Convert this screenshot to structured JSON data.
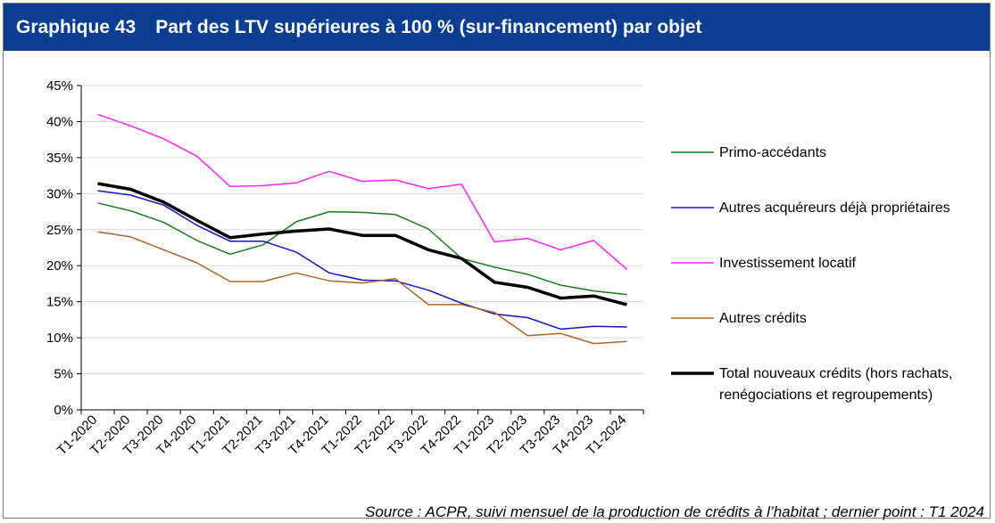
{
  "header": {
    "number": "Graphique 43",
    "title": "Part des LTV supérieures à 100 % (sur-financement) par objet"
  },
  "source": "Source : ACPR, suivi mensuel de la production de crédits à l’habitat ; dernier point : T1 2024",
  "chart_data": {
    "type": "line",
    "title": "",
    "xlabel": "",
    "ylabel": "",
    "ylim": [
      0,
      45
    ],
    "y_ticks": [
      "0%",
      "5%",
      "10%",
      "15%",
      "20%",
      "25%",
      "30%",
      "35%",
      "40%",
      "45%"
    ],
    "grid": "horizontal",
    "legend_position": "right",
    "categories": [
      "T1-2020",
      "T2-2020",
      "T3-2020",
      "T4-2020",
      "T1-2021",
      "T2-2021",
      "T3-2021",
      "T4-2021",
      "T1-2022",
      "T2-2022",
      "T3-2022",
      "T4-2022",
      "T1-2023",
      "T2-2023",
      "T3-2023",
      "T4-2023",
      "T1-2024"
    ],
    "series": [
      {
        "name": "Primo-accédants",
        "color": "#1a7a1a",
        "width": 1.5,
        "values": [
          28.7,
          27.6,
          26.0,
          23.5,
          21.6,
          22.9,
          26.1,
          27.5,
          27.4,
          27.1,
          25.1,
          21.0,
          19.8,
          18.8,
          17.3,
          16.5,
          16.0
        ]
      },
      {
        "name": "Autres acquéreurs déjà propriétaires",
        "color": "#1212c8",
        "width": 1.5,
        "values": [
          30.4,
          29.8,
          28.4,
          25.6,
          23.4,
          23.4,
          21.9,
          19.0,
          18.0,
          17.9,
          16.6,
          14.8,
          13.3,
          12.8,
          11.2,
          11.6,
          11.5
        ]
      },
      {
        "name": "Investissement locatif",
        "color": "#ff22ff",
        "width": 1.5,
        "values": [
          41.0,
          39.4,
          37.6,
          35.2,
          31.0,
          31.1,
          31.5,
          33.1,
          31.7,
          31.9,
          30.7,
          31.3,
          23.3,
          23.8,
          22.2,
          23.5,
          19.5
        ]
      },
      {
        "name": "Autres crédits",
        "color": "#b0642a",
        "width": 1.5,
        "values": [
          24.7,
          24.0,
          22.2,
          20.4,
          17.8,
          17.8,
          19.0,
          17.9,
          17.6,
          18.2,
          14.6,
          14.6,
          13.5,
          10.3,
          10.6,
          9.2,
          9.5
        ]
      },
      {
        "name": "Total nouveaux crédits (hors rachats, renégociations et regroupements)",
        "color": "#000000",
        "width": 3.5,
        "values": [
          31.4,
          30.6,
          28.8,
          26.3,
          23.9,
          24.4,
          24.8,
          25.1,
          24.2,
          24.2,
          22.2,
          21.0,
          17.7,
          17.0,
          15.5,
          15.8,
          14.6
        ]
      }
    ]
  }
}
